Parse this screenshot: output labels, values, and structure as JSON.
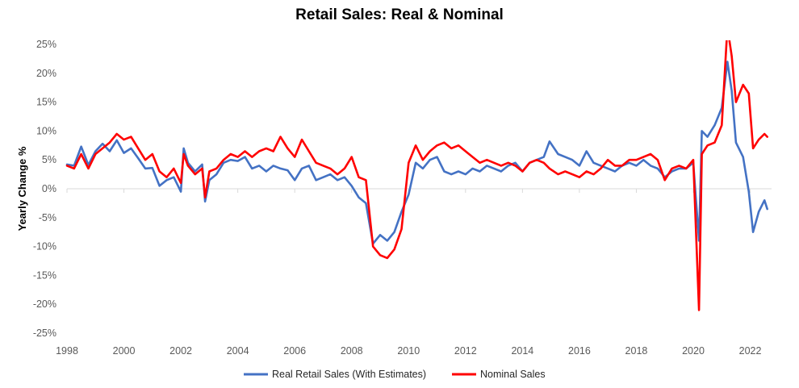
{
  "chart_data": {
    "type": "line",
    "title": "Retail Sales: Real & Nominal",
    "xlabel": "",
    "ylabel": "Yearly Change %",
    "xlim": [
      1998,
      2022.75
    ],
    "ylim": [
      -25,
      25
    ],
    "x_ticks": [
      1998,
      2000,
      2002,
      2004,
      2006,
      2008,
      2010,
      2012,
      2014,
      2016,
      2018,
      2020,
      2022
    ],
    "x_tick_labels": [
      "1998",
      "2000",
      "2002",
      "2004",
      "2006",
      "2008",
      "2010",
      "2012",
      "2014",
      "2016",
      "2018",
      "2020",
      "2022"
    ],
    "y_ticks": [
      25,
      20,
      15,
      10,
      5,
      0,
      -5,
      -10,
      -15,
      -20,
      -25
    ],
    "y_tick_labels": [
      "25%",
      "20%",
      "15%",
      "10%",
      "5%",
      "0%",
      "-5%",
      "-10%",
      "-15%",
      "-20%",
      "-25%"
    ],
    "grid": false,
    "legend_position": "bottom-center",
    "series": [
      {
        "name": "Real Retail Sales (With Estimates)",
        "color": "#4472C4",
        "points": [
          [
            1998.0,
            4.2
          ],
          [
            1998.25,
            4.0
          ],
          [
            1998.5,
            7.3
          ],
          [
            1998.75,
            4.1
          ],
          [
            1999.0,
            6.5
          ],
          [
            1999.25,
            7.8
          ],
          [
            1999.5,
            6.5
          ],
          [
            1999.75,
            8.4
          ],
          [
            2000.0,
            6.2
          ],
          [
            2000.25,
            7.0
          ],
          [
            2000.5,
            5.3
          ],
          [
            2000.75,
            3.5
          ],
          [
            2001.0,
            3.6
          ],
          [
            2001.25,
            0.5
          ],
          [
            2001.5,
            1.5
          ],
          [
            2001.75,
            2.0
          ],
          [
            2002.0,
            -0.5
          ],
          [
            2002.1,
            7.0
          ],
          [
            2002.25,
            4.5
          ],
          [
            2002.5,
            3.0
          ],
          [
            2002.75,
            4.2
          ],
          [
            2002.85,
            -2.2
          ],
          [
            2003.0,
            1.5
          ],
          [
            2003.25,
            2.5
          ],
          [
            2003.5,
            4.5
          ],
          [
            2003.75,
            5.0
          ],
          [
            2004.0,
            4.8
          ],
          [
            2004.25,
            5.5
          ],
          [
            2004.5,
            3.5
          ],
          [
            2004.75,
            4.0
          ],
          [
            2005.0,
            3.0
          ],
          [
            2005.25,
            4.0
          ],
          [
            2005.5,
            3.5
          ],
          [
            2005.75,
            3.2
          ],
          [
            2006.0,
            1.5
          ],
          [
            2006.25,
            3.5
          ],
          [
            2006.5,
            4.0
          ],
          [
            2006.75,
            1.5
          ],
          [
            2007.0,
            2.0
          ],
          [
            2007.25,
            2.5
          ],
          [
            2007.5,
            1.5
          ],
          [
            2007.75,
            2.0
          ],
          [
            2008.0,
            0.5
          ],
          [
            2008.25,
            -1.5
          ],
          [
            2008.5,
            -2.5
          ],
          [
            2008.75,
            -9.5
          ],
          [
            2009.0,
            -8.0
          ],
          [
            2009.25,
            -9.0
          ],
          [
            2009.5,
            -7.5
          ],
          [
            2009.75,
            -4.0
          ],
          [
            2010.0,
            -1.0
          ],
          [
            2010.25,
            4.5
          ],
          [
            2010.5,
            3.5
          ],
          [
            2010.75,
            5.0
          ],
          [
            2011.0,
            5.5
          ],
          [
            2011.25,
            3.0
          ],
          [
            2011.5,
            2.5
          ],
          [
            2011.75,
            3.0
          ],
          [
            2012.0,
            2.5
          ],
          [
            2012.25,
            3.5
          ],
          [
            2012.5,
            3.0
          ],
          [
            2012.75,
            4.0
          ],
          [
            2013.0,
            3.5
          ],
          [
            2013.25,
            3.0
          ],
          [
            2013.5,
            4.0
          ],
          [
            2013.75,
            4.5
          ],
          [
            2014.0,
            3.0
          ],
          [
            2014.25,
            4.5
          ],
          [
            2014.5,
            5.0
          ],
          [
            2014.75,
            5.5
          ],
          [
            2014.95,
            8.2
          ],
          [
            2015.25,
            6.0
          ],
          [
            2015.5,
            5.5
          ],
          [
            2015.75,
            5.0
          ],
          [
            2016.0,
            4.0
          ],
          [
            2016.25,
            6.5
          ],
          [
            2016.5,
            4.5
          ],
          [
            2016.75,
            4.0
          ],
          [
            2017.0,
            3.5
          ],
          [
            2017.25,
            3.0
          ],
          [
            2017.5,
            4.0
          ],
          [
            2017.75,
            4.5
          ],
          [
            2018.0,
            4.0
          ],
          [
            2018.25,
            5.0
          ],
          [
            2018.5,
            4.0
          ],
          [
            2018.75,
            3.5
          ],
          [
            2019.0,
            2.0
          ],
          [
            2019.25,
            3.0
          ],
          [
            2019.5,
            3.5
          ],
          [
            2019.75,
            3.5
          ],
          [
            2020.0,
            4.5
          ],
          [
            2020.2,
            -9.0
          ],
          [
            2020.3,
            10.0
          ],
          [
            2020.5,
            9.0
          ],
          [
            2020.75,
            11.0
          ],
          [
            2021.0,
            14.0
          ],
          [
            2021.2,
            22.0
          ],
          [
            2021.35,
            17.0
          ],
          [
            2021.5,
            8.0
          ],
          [
            2021.75,
            5.5
          ],
          [
            2021.95,
            -0.5
          ],
          [
            2022.1,
            -7.5
          ],
          [
            2022.3,
            -4.0
          ],
          [
            2022.5,
            -2.0
          ],
          [
            2022.6,
            -3.5
          ]
        ]
      },
      {
        "name": "Nominal Sales",
        "color": "#FF0000",
        "points": [
          [
            1998.0,
            4.0
          ],
          [
            1998.25,
            3.5
          ],
          [
            1998.5,
            6.0
          ],
          [
            1998.75,
            3.5
          ],
          [
            1999.0,
            6.0
          ],
          [
            1999.25,
            7.0
          ],
          [
            1999.5,
            8.0
          ],
          [
            1999.75,
            9.5
          ],
          [
            2000.0,
            8.5
          ],
          [
            2000.25,
            9.0
          ],
          [
            2000.5,
            7.0
          ],
          [
            2000.75,
            5.0
          ],
          [
            2001.0,
            6.0
          ],
          [
            2001.25,
            3.0
          ],
          [
            2001.5,
            2.0
          ],
          [
            2001.75,
            3.5
          ],
          [
            2002.0,
            1.0
          ],
          [
            2002.1,
            6.0
          ],
          [
            2002.25,
            4.0
          ],
          [
            2002.5,
            2.5
          ],
          [
            2002.75,
            3.5
          ],
          [
            2002.85,
            -1.5
          ],
          [
            2003.0,
            3.0
          ],
          [
            2003.25,
            3.5
          ],
          [
            2003.5,
            5.0
          ],
          [
            2003.75,
            6.0
          ],
          [
            2004.0,
            5.5
          ],
          [
            2004.25,
            6.5
          ],
          [
            2004.5,
            5.5
          ],
          [
            2004.75,
            6.5
          ],
          [
            2005.0,
            7.0
          ],
          [
            2005.25,
            6.5
          ],
          [
            2005.5,
            9.0
          ],
          [
            2005.75,
            7.0
          ],
          [
            2006.0,
            5.5
          ],
          [
            2006.25,
            8.5
          ],
          [
            2006.5,
            6.5
          ],
          [
            2006.75,
            4.5
          ],
          [
            2007.0,
            4.0
          ],
          [
            2007.25,
            3.5
          ],
          [
            2007.5,
            2.5
          ],
          [
            2007.75,
            3.5
          ],
          [
            2008.0,
            5.5
          ],
          [
            2008.25,
            2.0
          ],
          [
            2008.5,
            1.5
          ],
          [
            2008.75,
            -10.0
          ],
          [
            2009.0,
            -11.5
          ],
          [
            2009.25,
            -12.0
          ],
          [
            2009.5,
            -10.5
          ],
          [
            2009.75,
            -7.0
          ],
          [
            2010.0,
            4.5
          ],
          [
            2010.25,
            7.5
          ],
          [
            2010.5,
            5.0
          ],
          [
            2010.75,
            6.5
          ],
          [
            2011.0,
            7.5
          ],
          [
            2011.25,
            8.0
          ],
          [
            2011.5,
            7.0
          ],
          [
            2011.75,
            7.5
          ],
          [
            2012.0,
            6.5
          ],
          [
            2012.25,
            5.5
          ],
          [
            2012.5,
            4.5
          ],
          [
            2012.75,
            5.0
          ],
          [
            2013.0,
            4.5
          ],
          [
            2013.25,
            4.0
          ],
          [
            2013.5,
            4.5
          ],
          [
            2013.75,
            4.0
          ],
          [
            2014.0,
            3.0
          ],
          [
            2014.25,
            4.5
          ],
          [
            2014.5,
            5.0
          ],
          [
            2014.75,
            4.5
          ],
          [
            2014.95,
            3.5
          ],
          [
            2015.25,
            2.5
          ],
          [
            2015.5,
            3.0
          ],
          [
            2015.75,
            2.5
          ],
          [
            2016.0,
            2.0
          ],
          [
            2016.25,
            3.0
          ],
          [
            2016.5,
            2.5
          ],
          [
            2016.75,
            3.5
          ],
          [
            2017.0,
            5.0
          ],
          [
            2017.25,
            4.0
          ],
          [
            2017.5,
            4.0
          ],
          [
            2017.75,
            5.0
          ],
          [
            2018.0,
            5.0
          ],
          [
            2018.25,
            5.5
          ],
          [
            2018.5,
            6.0
          ],
          [
            2018.75,
            5.0
          ],
          [
            2019.0,
            1.5
          ],
          [
            2019.25,
            3.5
          ],
          [
            2019.5,
            4.0
          ],
          [
            2019.75,
            3.5
          ],
          [
            2020.0,
            5.0
          ],
          [
            2020.2,
            -21.0
          ],
          [
            2020.3,
            6.0
          ],
          [
            2020.5,
            7.5
          ],
          [
            2020.75,
            8.0
          ],
          [
            2021.0,
            11.0
          ],
          [
            2021.2,
            28.0
          ],
          [
            2021.35,
            23.0
          ],
          [
            2021.5,
            15.0
          ],
          [
            2021.75,
            18.0
          ],
          [
            2021.95,
            16.5
          ],
          [
            2022.1,
            7.0
          ],
          [
            2022.3,
            8.5
          ],
          [
            2022.5,
            9.5
          ],
          [
            2022.6,
            9.0
          ]
        ]
      }
    ]
  }
}
